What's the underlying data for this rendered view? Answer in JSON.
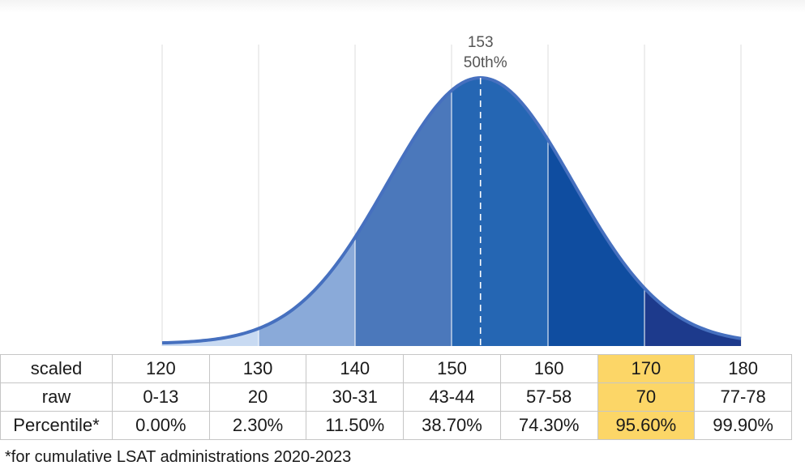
{
  "chart_data": {
    "type": "area",
    "title": "",
    "median_label": {
      "value": "153",
      "percentile": "50th%"
    },
    "x_range": [
      120,
      180
    ],
    "median": 153,
    "segments": [
      {
        "from": 120,
        "to": 130,
        "color": "#c8daf2"
      },
      {
        "from": 130,
        "to": 140,
        "color": "#8aaad9"
      },
      {
        "from": 140,
        "to": 150,
        "color": "#4b78bb"
      },
      {
        "from": 150,
        "to": 160,
        "color": "#2566b3"
      },
      {
        "from": 160,
        "to": 170,
        "color": "#0f4da0"
      },
      {
        "from": 170,
        "to": 180,
        "color": "#1d3a8c"
      }
    ],
    "curve_color": "#4670bf",
    "gridlines_x": [
      120,
      130,
      140,
      150,
      160,
      170,
      180
    ]
  },
  "table": {
    "rows": [
      {
        "label": "scaled",
        "cells": [
          "120",
          "130",
          "140",
          "150",
          "160",
          "170",
          "180"
        ]
      },
      {
        "label": "raw",
        "cells": [
          "0-13",
          "20",
          "30-31",
          "43-44",
          "57-58",
          "70",
          "77-78"
        ]
      },
      {
        "label": "Percentile*",
        "cells": [
          "0.00%",
          "2.30%",
          "11.50%",
          "38.70%",
          "74.30%",
          "95.60%",
          "99.90%"
        ]
      }
    ],
    "highlight_column": 5,
    "highlight_color": "#fcd667"
  },
  "footnote": "*for cumulative LSAT administrations 2020-2023"
}
